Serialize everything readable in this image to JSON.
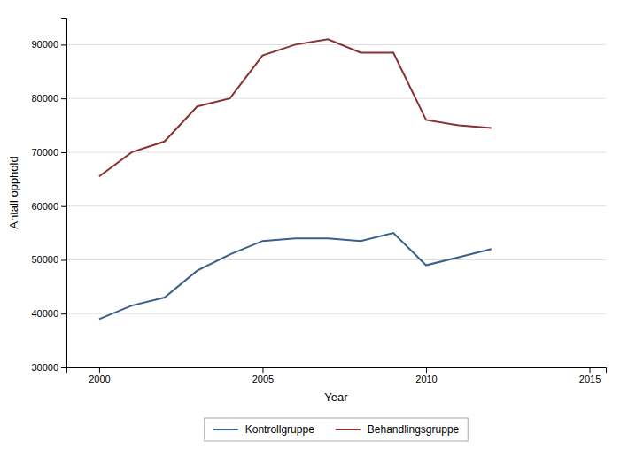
{
  "chart_data": {
    "type": "line",
    "x_label": "Year",
    "y_label": "Antall opphold",
    "x": [
      2000,
      2001,
      2002,
      2003,
      2004,
      2005,
      2006,
      2007,
      2008,
      2009,
      2010,
      2011,
      2012
    ],
    "series": [
      {
        "name": "Kontrollgruppe",
        "color": "#3a5f8a",
        "values": [
          39000,
          41500,
          43000,
          48000,
          51000,
          53500,
          54000,
          54000,
          53500,
          55000,
          49000,
          50500,
          52000
        ]
      },
      {
        "name": "Behandlingsgruppe",
        "color": "#8b3030",
        "values": [
          65500,
          70000,
          72000,
          78500,
          80000,
          88000,
          90000,
          91000,
          88500,
          88500,
          76000,
          75000,
          74500
        ]
      }
    ],
    "xlim": [
      1999,
      2015.5
    ],
    "ylim": [
      30000,
      95000
    ],
    "xticks": [
      2000,
      2005,
      2010,
      2015
    ],
    "yticks": [
      30000,
      40000,
      50000,
      60000,
      70000,
      80000,
      90000
    ],
    "grid": true,
    "legend": "bottom"
  }
}
